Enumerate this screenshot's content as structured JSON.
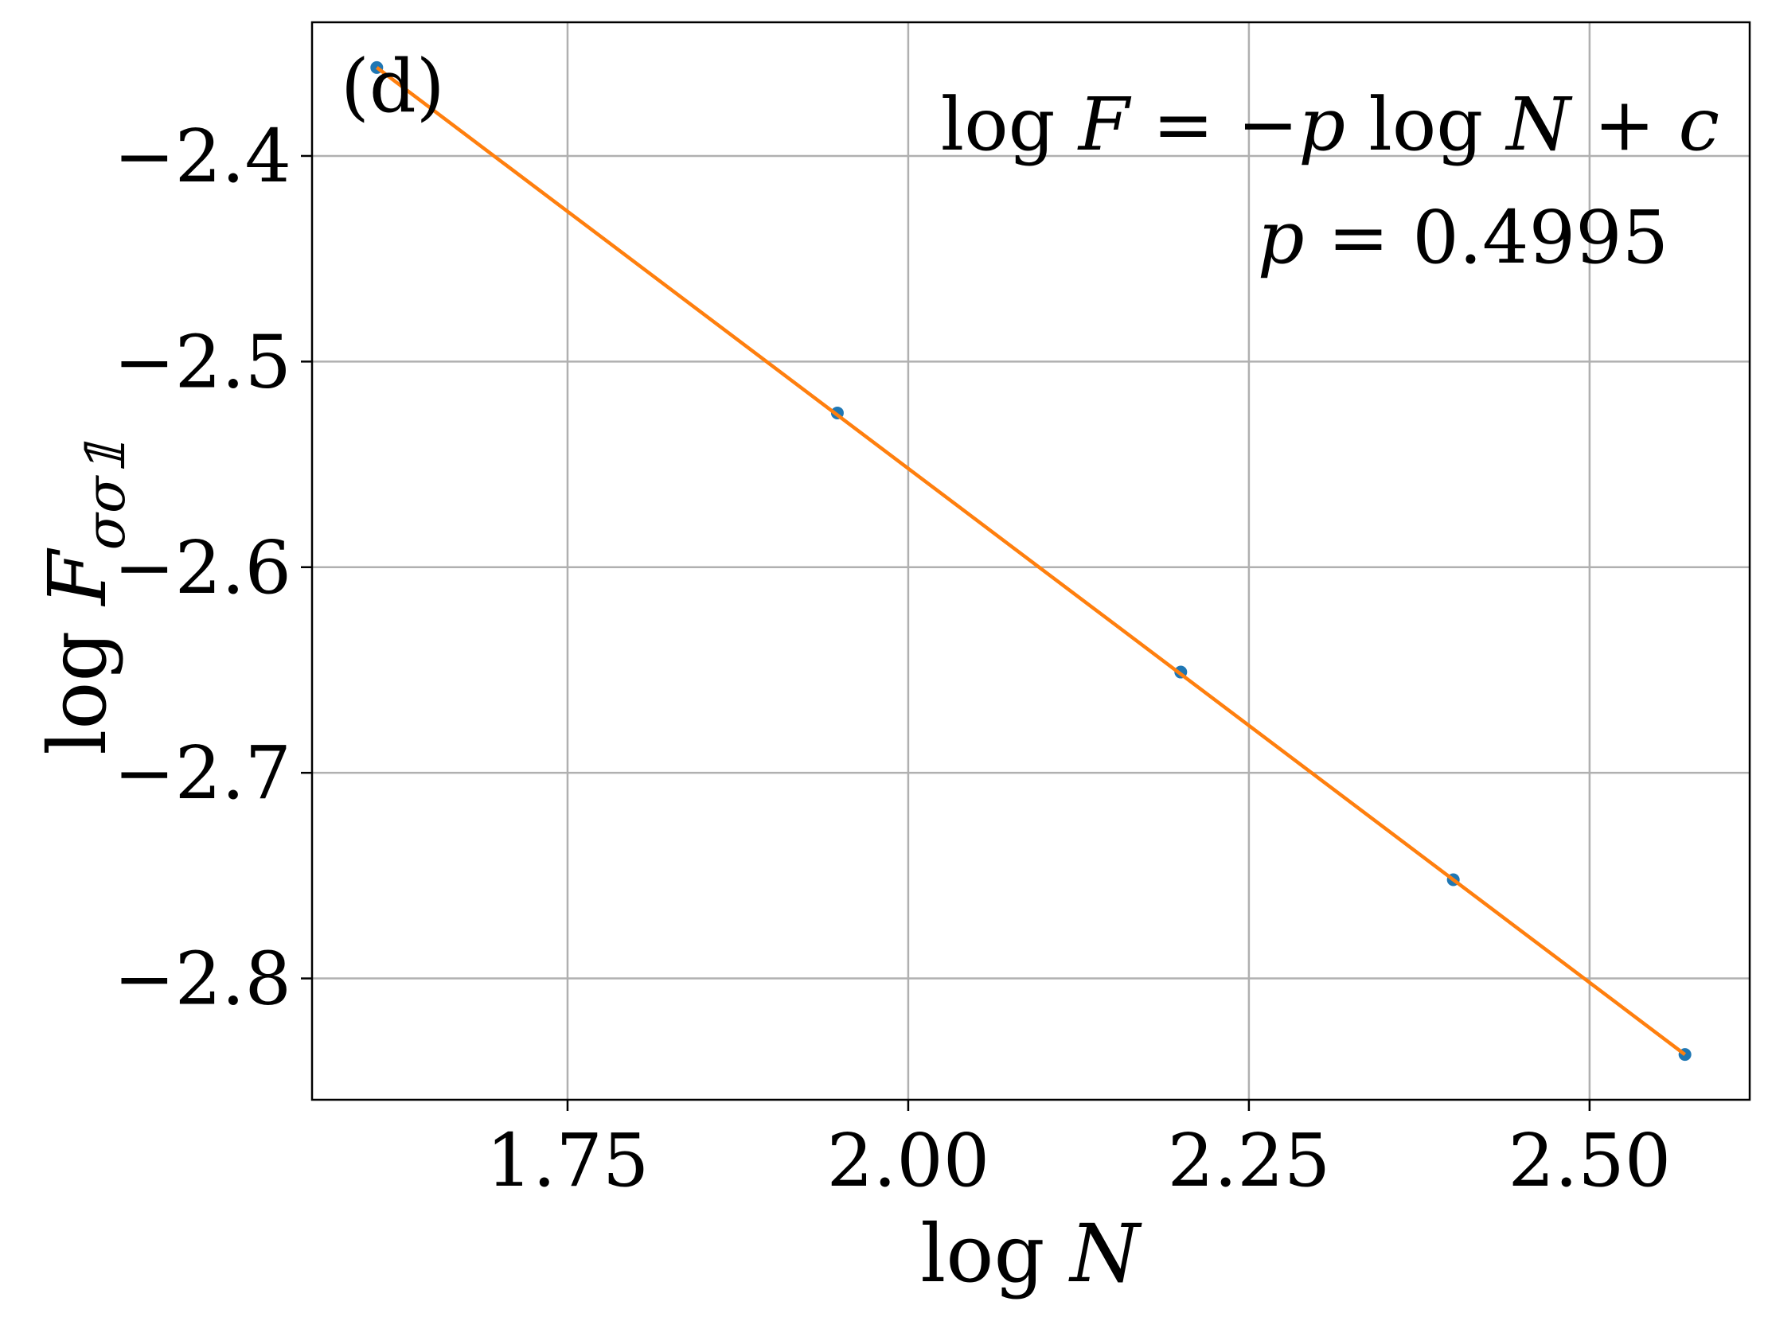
{
  "chart_data": {
    "type": "scatter",
    "panel_label": "(d)",
    "xlabel": {
      "prefix": "log",
      "var": "N"
    },
    "ylabel": {
      "prefix": "log",
      "var": "F",
      "sub": "σσ𝟙"
    },
    "annotation": {
      "line1": {
        "p1": "log",
        "v1": "F",
        "p2": " = −",
        "v2": "p",
        "p3": " log",
        "v3": "N",
        "p4": " + ",
        "v4": "c"
      },
      "line2": {
        "v1": "p",
        "p1": " = 0.4995"
      }
    },
    "xlim": [
      1.5625,
      2.6175
    ],
    "ylim": [
      -2.859,
      -2.335
    ],
    "xticks": [
      1.75,
      2.0,
      2.25,
      2.5
    ],
    "xtick_labels": [
      "1.75",
      "2.00",
      "2.25",
      "2.50"
    ],
    "yticks": [
      -2.4,
      -2.5,
      -2.6,
      -2.7,
      -2.8
    ],
    "ytick_labels": [
      "−2.4",
      "−2.5",
      "−2.6",
      "−2.7",
      "−2.8"
    ],
    "grid": true,
    "series": [
      {
        "kind": "points",
        "x": [
          1.61,
          1.948,
          2.2,
          2.4,
          2.57
        ],
        "y": [
          -2.357,
          -2.525,
          -2.651,
          -2.752,
          -2.837
        ]
      },
      {
        "kind": "fit-line",
        "x": [
          1.61,
          2.57
        ],
        "y": [
          -2.357,
          -2.837
        ]
      }
    ],
    "colors": {
      "points": "#1f77b4",
      "fit_line": "#ff7f0e",
      "grid": "#b0b0b0",
      "axes": "#000000"
    }
  }
}
